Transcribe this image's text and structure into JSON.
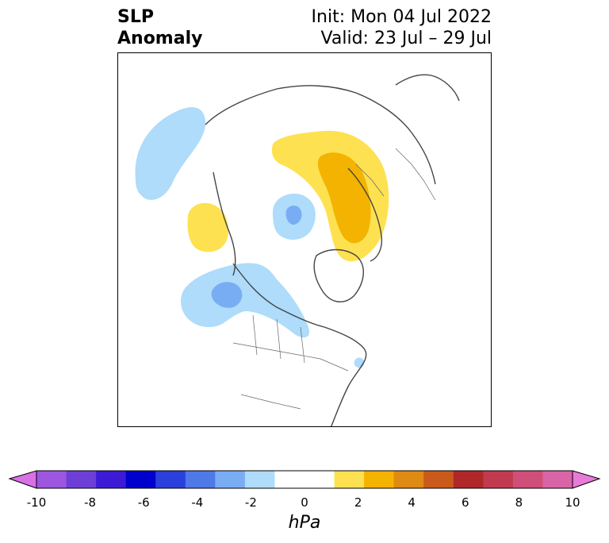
{
  "title": {
    "left_line1": "SLP",
    "left_line2": "Anomaly",
    "right_line1": "Init: Mon 04 Jul 2022",
    "right_line2": "Valid: 23 Jul – 29 Jul"
  },
  "colorbar": {
    "unit": "hPa",
    "ticks": [
      "-10",
      "-8",
      "-6",
      "-4",
      "-2",
      "0",
      "2",
      "4",
      "6",
      "8",
      "10"
    ],
    "colors": [
      "#da70e6",
      "#9d56e0",
      "#6e3fd8",
      "#3d1ad6",
      "#0000cd",
      "#2a3fdc",
      "#4f78e8",
      "#79adf3",
      "#aedcfa",
      "#ffffff",
      "#ffffff",
      "#fde150",
      "#f3b300",
      "#df8a12",
      "#c95a1c",
      "#b0272a",
      "#c23a4f",
      "#cf4f78",
      "#d964a8",
      "#e87ad8"
    ]
  },
  "map": {
    "projection": "north-polar-stereographic",
    "anomalies": [
      {
        "region": "Gulf of Alaska / NE Pacific",
        "sign": "negative",
        "level": "-2 to -3"
      },
      {
        "region": "Siberian coast",
        "sign": "negative",
        "level": "-1 to -2"
      },
      {
        "region": "Western Europe / Scandinavia",
        "sign": "positive",
        "level": "1 to 3"
      },
      {
        "region": "North Pacific (Kamchatka east)",
        "sign": "positive",
        "level": "1 to 2"
      },
      {
        "region": "Hudson Bay / Canada",
        "sign": "negative",
        "level": "-1 to -2"
      }
    ]
  }
}
